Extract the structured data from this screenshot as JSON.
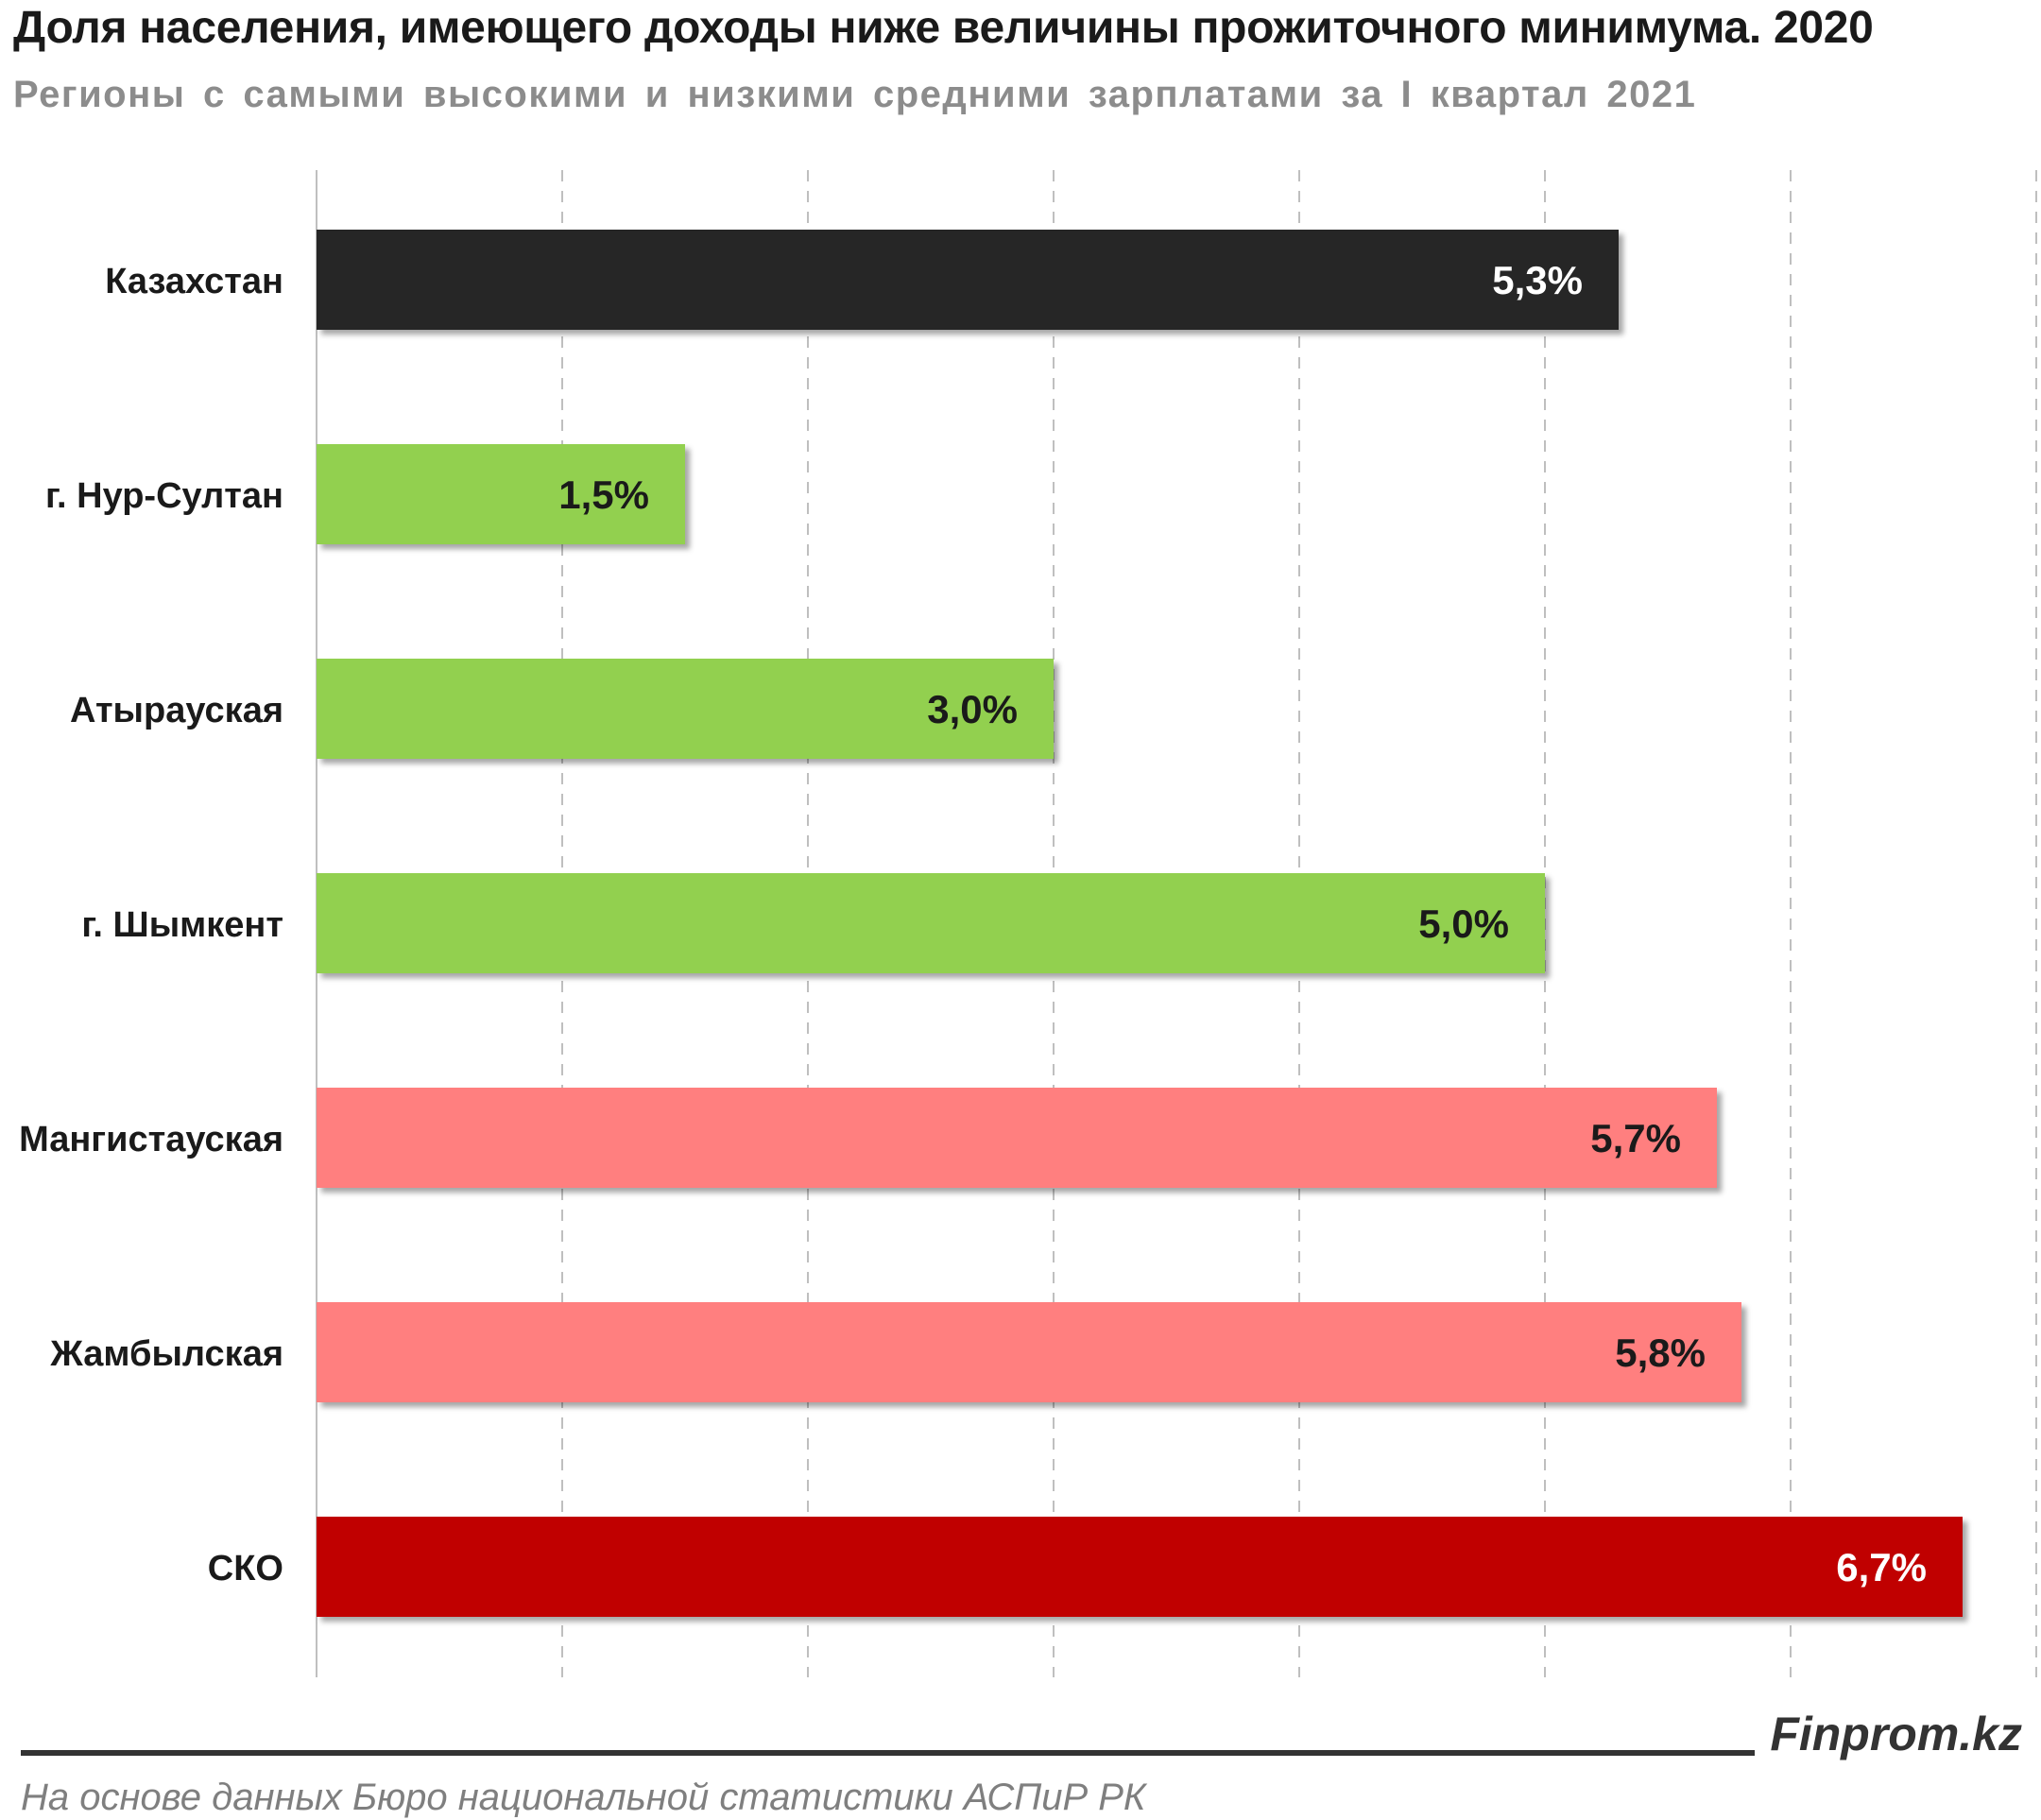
{
  "header": {
    "title": "Доля населения, имеющего доходы ниже величины прожиточного минимума. 2020",
    "subtitle": "Регионы с самыми  высокими  и низкими  средними  зарплатами  за I квартал  2021"
  },
  "footer": {
    "brand": "Finprom.kz",
    "source": "На основе данных  Бюро национальной  статистики АСПиР РК"
  },
  "chart_data": {
    "type": "bar",
    "orientation": "horizontal",
    "categories": [
      "Казахстан",
      "г. Нур-Султан",
      "Атырауская",
      "г. Шымкент",
      "Мангистауская",
      "Жамбылская",
      "СКО"
    ],
    "values": [
      5.3,
      1.5,
      3.0,
      5.0,
      5.7,
      5.8,
      6.7
    ],
    "value_labels": [
      "5,3%",
      "1,5%",
      "3,0%",
      "5,0%",
      "5,7%",
      "5,8%",
      "6,7%"
    ],
    "bar_colors": [
      "#262626",
      "#92d050",
      "#92d050",
      "#92d050",
      "#ff7f7f",
      "#ff7f7f",
      "#c00000"
    ],
    "label_colors": [
      "#ffffff",
      "#1a1a1a",
      "#1a1a1a",
      "#1a1a1a",
      "#1a1a1a",
      "#1a1a1a",
      "#ffffff"
    ],
    "xlim": [
      0,
      7
    ],
    "grid": true,
    "x_tick_labels_shown": false
  }
}
